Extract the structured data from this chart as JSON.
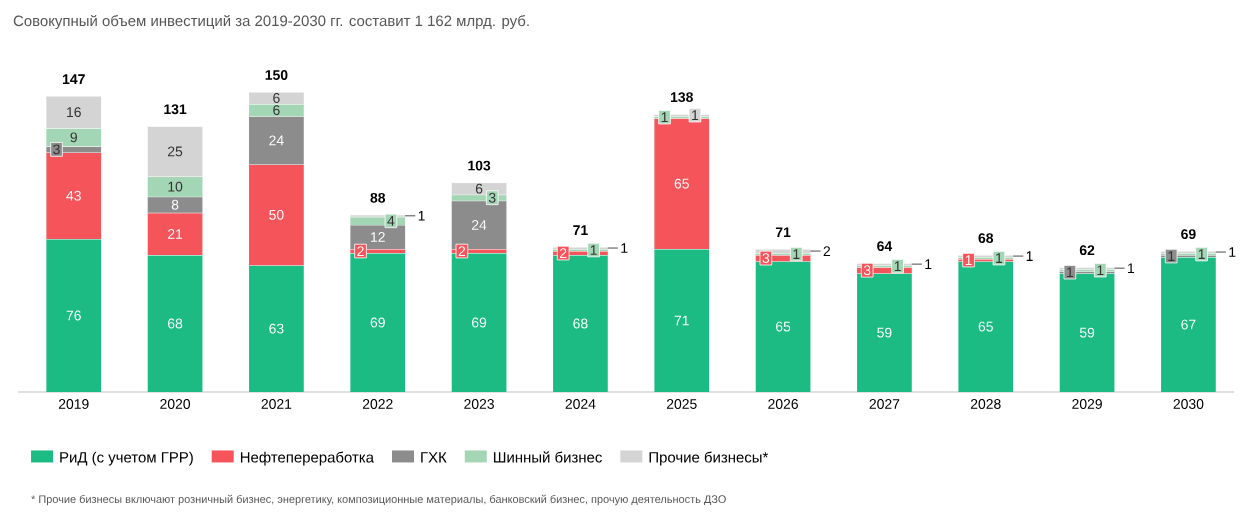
{
  "chart_data": {
    "type": "bar",
    "stacked": true,
    "data_labels": true,
    "legend": "bottom",
    "title": "Совокупный объем инвестиций за 2019-2030 гг. составит 1 162 млрд. руб.",
    "categories": [
      "2019",
      "2020",
      "2021",
      "2022",
      "2023",
      "2024",
      "2025",
      "2026",
      "2027",
      "2028",
      "2029",
      "2030"
    ],
    "series": [
      {
        "name": "РиД (с учетом ГРР)",
        "color": "#1dbb84",
        "values": [
          76,
          68,
          63,
          69,
          69,
          68,
          71,
          65,
          59,
          65,
          59,
          67
        ]
      },
      {
        "name": "Нефтепереработка",
        "color": "#f4545a",
        "values": [
          43,
          21,
          50,
          2,
          2,
          2,
          65,
          3,
          3,
          1,
          null,
          null
        ]
      },
      {
        "name": "ГХК",
        "color": "#8c8c8c",
        "values": [
          3,
          8,
          24,
          12,
          24,
          null,
          null,
          null,
          null,
          null,
          1,
          1
        ]
      },
      {
        "name": "Шинный бизнес",
        "color": "#a3d6b4",
        "values": [
          9,
          10,
          6,
          4,
          3,
          1,
          1,
          1,
          1,
          1,
          1,
          1
        ]
      },
      {
        "name": "Прочие бизнесы*",
        "color": "#d4d4d4",
        "values": [
          16,
          25,
          6,
          1,
          6,
          1,
          1,
          2,
          1,
          1,
          1,
          1
        ]
      }
    ],
    "totals": [
      "147",
      "131",
      "150",
      "88",
      "103",
      "71",
      "138",
      "71",
      "64",
      "68",
      "62",
      "69"
    ],
    "annotations": [
      "* Прочие бизнесы включают розничный бизнес, энергетику, композиционные материалы, банковский бизнес, прочую деятельность ДЗО"
    ]
  }
}
